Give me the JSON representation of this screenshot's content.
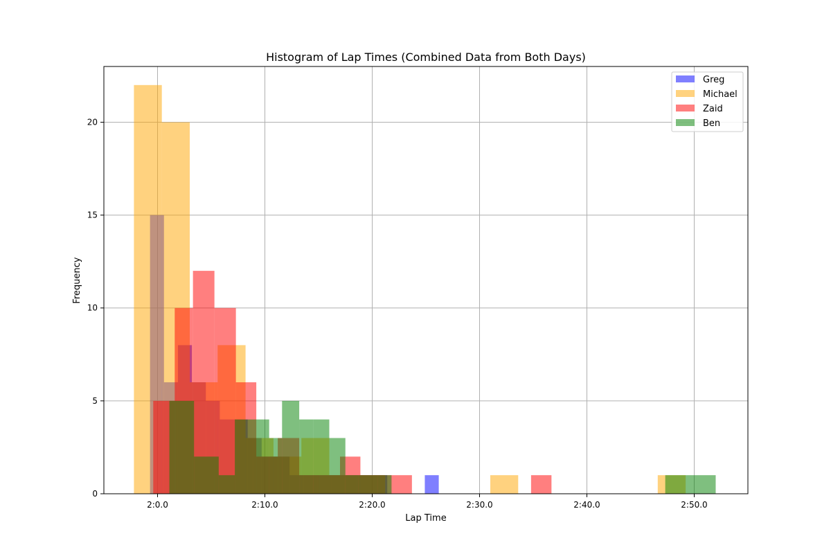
{
  "chart_data": {
    "type": "bar",
    "title": "Histogram of Lap Times (Combined Data from Both Days)",
    "xlabel": "Lap Time",
    "ylabel": "Frequency",
    "x_unit": "seconds",
    "xlim": [
      115,
      175
    ],
    "ylim": [
      0,
      23
    ],
    "x_ticks": [
      {
        "value": 120,
        "label": "2:0.0"
      },
      {
        "value": 130,
        "label": "2:10.0"
      },
      {
        "value": 140,
        "label": "2:20.0"
      },
      {
        "value": 150,
        "label": "2:30.0"
      },
      {
        "value": 160,
        "label": "2:40.0"
      },
      {
        "value": 170,
        "label": "2:50.0"
      }
    ],
    "y_ticks": [
      {
        "value": 0,
        "label": "0"
      },
      {
        "value": 5,
        "label": "5"
      },
      {
        "value": 10,
        "label": "10"
      },
      {
        "value": 15,
        "label": "15"
      },
      {
        "value": 20,
        "label": "20"
      }
    ],
    "grid": true,
    "legend_position": "top-right",
    "series": [
      {
        "name": "Greg",
        "color": "#0000ff",
        "opacity": 0.5,
        "bins": [
          {
            "x0": 119.3,
            "x1": 120.6,
            "count": 15
          },
          {
            "x0": 120.6,
            "x1": 121.9,
            "count": 6
          },
          {
            "x0": 121.9,
            "x1": 123.2,
            "count": 8
          },
          {
            "x0": 123.2,
            "x1": 124.5,
            "count": 6
          },
          {
            "x0": 124.5,
            "x1": 125.8,
            "count": 5
          },
          {
            "x0": 125.8,
            "x1": 127.1,
            "count": 4
          },
          {
            "x0": 127.1,
            "x1": 128.4,
            "count": 4
          },
          {
            "x0": 128.4,
            "x1": 129.7,
            "count": 3
          },
          {
            "x0": 129.7,
            "x1": 131.0,
            "count": 2
          },
          {
            "x0": 131.0,
            "x1": 132.3,
            "count": 2
          },
          {
            "x0": 132.3,
            "x1": 133.6,
            "count": 1
          },
          {
            "x0": 133.6,
            "x1": 134.9,
            "count": 1
          },
          {
            "x0": 134.9,
            "x1": 136.2,
            "count": 1
          },
          {
            "x0": 136.2,
            "x1": 137.5,
            "count": 1
          },
          {
            "x0": 137.5,
            "x1": 138.8,
            "count": 1
          },
          {
            "x0": 138.8,
            "x1": 140.1,
            "count": 1
          },
          {
            "x0": 140.1,
            "x1": 141.4,
            "count": 1
          },
          {
            "x0": 144.9,
            "x1": 146.2,
            "count": 1
          }
        ]
      },
      {
        "name": "Michael",
        "color": "#ffa500",
        "opacity": 0.5,
        "bins": [
          {
            "x0": 117.8,
            "x1": 120.4,
            "count": 22
          },
          {
            "x0": 120.4,
            "x1": 123.0,
            "count": 20
          },
          {
            "x0": 123.0,
            "x1": 125.6,
            "count": 6
          },
          {
            "x0": 125.6,
            "x1": 128.2,
            "count": 8
          },
          {
            "x0": 128.2,
            "x1": 130.8,
            "count": 3
          },
          {
            "x0": 130.8,
            "x1": 133.4,
            "count": 2
          },
          {
            "x0": 133.4,
            "x1": 136.0,
            "count": 3
          },
          {
            "x0": 136.0,
            "x1": 138.6,
            "count": 1
          },
          {
            "x0": 138.6,
            "x1": 141.2,
            "count": 1
          },
          {
            "x0": 151.0,
            "x1": 153.6,
            "count": 1
          },
          {
            "x0": 166.6,
            "x1": 169.2,
            "count": 1
          }
        ]
      },
      {
        "name": "Zaid",
        "color": "#ff0000",
        "opacity": 0.5,
        "bins": [
          {
            "x0": 119.6,
            "x1": 121.6,
            "count": 5
          },
          {
            "x0": 121.6,
            "x1": 123.3,
            "count": 10
          },
          {
            "x0": 123.3,
            "x1": 125.3,
            "count": 12
          },
          {
            "x0": 125.3,
            "x1": 127.3,
            "count": 10
          },
          {
            "x0": 127.3,
            "x1": 129.2,
            "count": 6
          },
          {
            "x0": 129.2,
            "x1": 131.2,
            "count": 2
          },
          {
            "x0": 131.2,
            "x1": 133.2,
            "count": 3
          },
          {
            "x0": 133.2,
            "x1": 135.1,
            "count": 1
          },
          {
            "x0": 135.1,
            "x1": 137.0,
            "count": 1
          },
          {
            "x0": 137.0,
            "x1": 138.9,
            "count": 2
          },
          {
            "x0": 138.9,
            "x1": 140.9,
            "count": 1
          },
          {
            "x0": 140.9,
            "x1": 143.7,
            "count": 1
          },
          {
            "x0": 154.8,
            "x1": 156.7,
            "count": 1
          }
        ]
      },
      {
        "name": "Ben",
        "color": "#008000",
        "opacity": 0.5,
        "bins": [
          {
            "x0": 121.1,
            "x1": 123.4,
            "count": 5
          },
          {
            "x0": 123.4,
            "x1": 125.7,
            "count": 2
          },
          {
            "x0": 125.7,
            "x1": 127.2,
            "count": 1
          },
          {
            "x0": 127.2,
            "x1": 128.9,
            "count": 4
          },
          {
            "x0": 128.9,
            "x1": 130.4,
            "count": 4
          },
          {
            "x0": 130.4,
            "x1": 131.6,
            "count": 3
          },
          {
            "x0": 131.6,
            "x1": 133.2,
            "count": 5
          },
          {
            "x0": 133.2,
            "x1": 134.5,
            "count": 4
          },
          {
            "x0": 134.5,
            "x1": 136.0,
            "count": 4
          },
          {
            "x0": 136.0,
            "x1": 137.5,
            "count": 3
          },
          {
            "x0": 137.5,
            "x1": 138.7,
            "count": 1
          },
          {
            "x0": 138.7,
            "x1": 140.5,
            "count": 1
          },
          {
            "x0": 140.5,
            "x1": 141.8,
            "count": 1
          },
          {
            "x0": 167.3,
            "x1": 169.1,
            "count": 1
          },
          {
            "x0": 169.1,
            "x1": 172.0,
            "count": 1
          }
        ]
      }
    ]
  }
}
